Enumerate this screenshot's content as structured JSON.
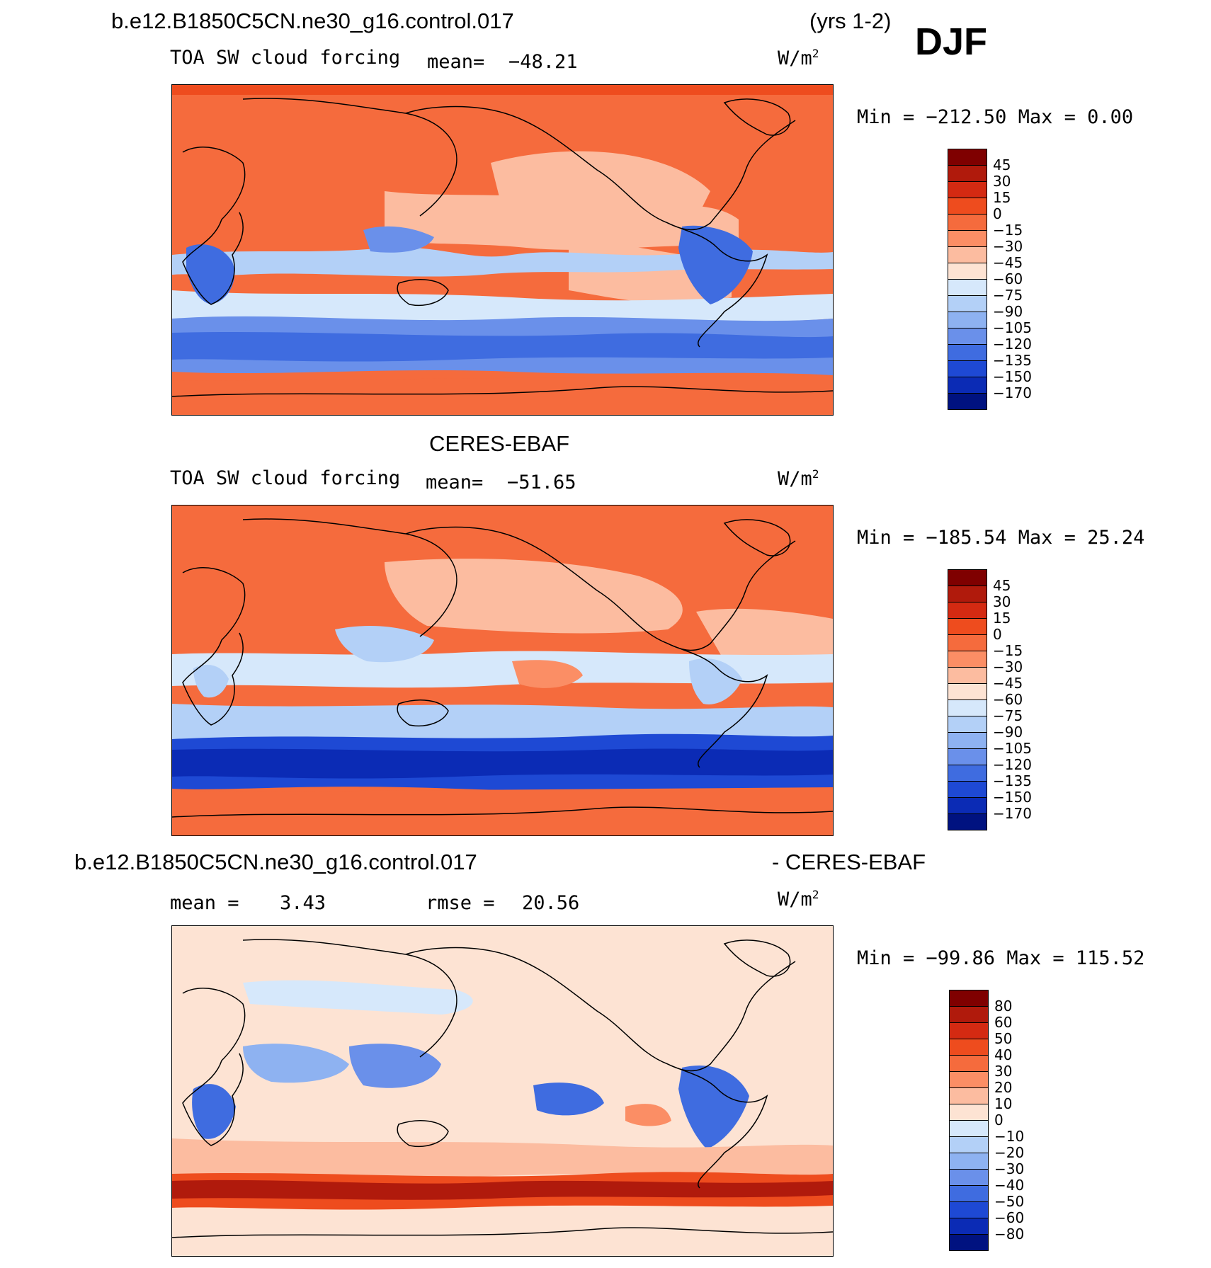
{
  "header": {
    "case_name": "b.e12.B1850C5CN.ne30_g16.control.017",
    "years": "(yrs 1-2)",
    "season": "DJF"
  },
  "colors": {
    "warm": [
      "#fde3d3",
      "#fcbca0",
      "#fb8e65",
      "#f56b3d",
      "#ee4c1e",
      "#d42a12",
      "#b01a0c",
      "#7f0000"
    ],
    "neutral": "#fdf0e3",
    "cool": [
      "#d6e8fb",
      "#b3d0f7",
      "#8eb2f1",
      "#6a90ea",
      "#3f6ce0",
      "#1e49d4",
      "#0b2bb5",
      "#001280"
    ]
  },
  "chart_data": [
    {
      "type": "heatmap",
      "title": "b.e12.B1850C5CN.ne30_g16.control.017",
      "subtitle": "TOA SW cloud forcing",
      "mean_label": "mean=",
      "mean": "−48.21",
      "units": "W/m",
      "units_sup": "2",
      "min_label": "Min  =  −212.50  Max  =      0.00",
      "min": -212.5,
      "max": 0.0,
      "colorbar_levels": [
        "45",
        "30",
        "15",
        "0",
        "−15",
        "−30",
        "−45",
        "−60",
        "−75",
        "−90",
        "−105",
        "−120",
        "−135",
        "−150",
        "−170"
      ],
      "colorbar_colors": [
        "#7f0000",
        "#b01a0c",
        "#d42a12",
        "#ee4c1e",
        "#f56b3d",
        "#fb8e65",
        "#fcbca0",
        "#fde3d3",
        "#d6e8fb",
        "#b3d0f7",
        "#8eb2f1",
        "#6a90ea",
        "#3f6ce0",
        "#1e49d4",
        "#0b2bb5",
        "#001280"
      ]
    },
    {
      "type": "heatmap",
      "title": "CERES-EBAF",
      "subtitle": "TOA SW cloud forcing",
      "mean_label": "mean=",
      "mean": "−51.65",
      "units": "W/m",
      "units_sup": "2",
      "min_label": "Min  =  −185.54  Max  =    25.24",
      "min": -185.54,
      "max": 25.24,
      "colorbar_levels": [
        "45",
        "30",
        "15",
        "0",
        "−15",
        "−30",
        "−45",
        "−60",
        "−75",
        "−90",
        "−105",
        "−120",
        "−135",
        "−150",
        "−170"
      ],
      "colorbar_colors": [
        "#7f0000",
        "#b01a0c",
        "#d42a12",
        "#ee4c1e",
        "#f56b3d",
        "#fb8e65",
        "#fcbca0",
        "#fde3d3",
        "#d6e8fb",
        "#b3d0f7",
        "#8eb2f1",
        "#6a90ea",
        "#3f6ce0",
        "#1e49d4",
        "#0b2bb5",
        "#001280"
      ]
    },
    {
      "type": "heatmap",
      "title": "b.e12.B1850C5CN.ne30_g16.control.017",
      "title_right": "- CERES-EBAF",
      "mean_label": "mean  =",
      "mean": "3.43",
      "rmse_label": "rmse  =",
      "rmse": "20.56",
      "units": "W/m",
      "units_sup": "2",
      "min_label": "Min  =  −99.86  Max  =  115.52",
      "min": -99.86,
      "max": 115.52,
      "colorbar_levels": [
        "80",
        "60",
        "50",
        "40",
        "30",
        "20",
        "10",
        "0",
        "−10",
        "−20",
        "−30",
        "−40",
        "−50",
        "−60",
        "−80"
      ],
      "colorbar_colors": [
        "#7f0000",
        "#b01a0c",
        "#d42a12",
        "#ee4c1e",
        "#f56b3d",
        "#fb8e65",
        "#fcbca0",
        "#fde3d3",
        "#d6e8fb",
        "#b3d0f7",
        "#8eb2f1",
        "#6a90ea",
        "#3f6ce0",
        "#1e49d4",
        "#0b2bb5",
        "#001280"
      ]
    }
  ]
}
